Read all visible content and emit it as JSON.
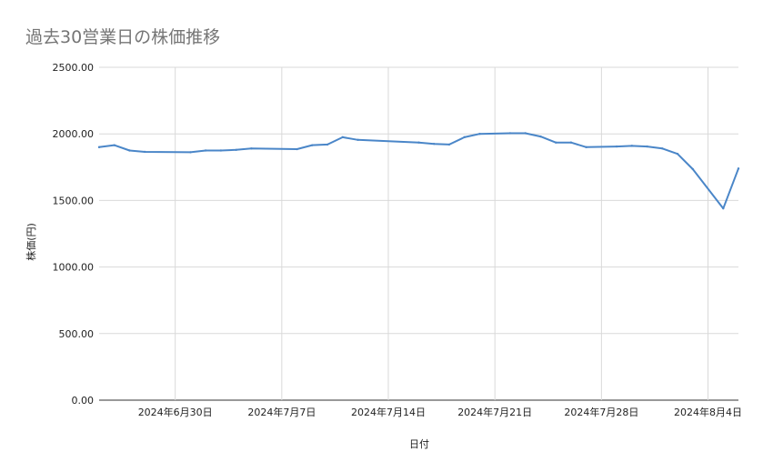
{
  "chart_data": {
    "type": "line",
    "title": "過去30営業日の株価推移",
    "xlabel": "日付",
    "ylabel": "株価(円)",
    "ylim": [
      0,
      2500
    ],
    "y_ticks": [
      "0.00",
      "500.00",
      "1000.00",
      "1500.00",
      "2000.00",
      "2500.00"
    ],
    "x_ticks": [
      {
        "label": "2024年6月30日",
        "date": "2024-06-30"
      },
      {
        "label": "2024年7月7日",
        "date": "2024-07-07"
      },
      {
        "label": "2024年7月14日",
        "date": "2024-07-14"
      },
      {
        "label": "2024年7月21日",
        "date": "2024-07-21"
      },
      {
        "label": "2024年7月28日",
        "date": "2024-07-28"
      },
      {
        "label": "2024年8月4日",
        "date": "2024-08-04"
      }
    ],
    "xlim": [
      "2024-06-25",
      "2024-08-06"
    ],
    "grid": true,
    "series": [
      {
        "color": "#4a86c8",
        "points": [
          {
            "x": "2024-06-25",
            "y": 1900
          },
          {
            "x": "2024-06-26",
            "y": 1915
          },
          {
            "x": "2024-06-27",
            "y": 1875
          },
          {
            "x": "2024-06-28",
            "y": 1865
          },
          {
            "x": "2024-07-01",
            "y": 1862
          },
          {
            "x": "2024-07-02",
            "y": 1875
          },
          {
            "x": "2024-07-03",
            "y": 1875
          },
          {
            "x": "2024-07-04",
            "y": 1880
          },
          {
            "x": "2024-07-05",
            "y": 1890
          },
          {
            "x": "2024-07-08",
            "y": 1885
          },
          {
            "x": "2024-07-09",
            "y": 1915
          },
          {
            "x": "2024-07-10",
            "y": 1920
          },
          {
            "x": "2024-07-11",
            "y": 1975
          },
          {
            "x": "2024-07-12",
            "y": 1955
          },
          {
            "x": "2024-07-16",
            "y": 1935
          },
          {
            "x": "2024-07-17",
            "y": 1925
          },
          {
            "x": "2024-07-18",
            "y": 1920
          },
          {
            "x": "2024-07-19",
            "y": 1975
          },
          {
            "x": "2024-07-20",
            "y": 2000
          },
          {
            "x": "2024-07-22",
            "y": 2005
          },
          {
            "x": "2024-07-23",
            "y": 2005
          },
          {
            "x": "2024-07-24",
            "y": 1980
          },
          {
            "x": "2024-07-25",
            "y": 1935
          },
          {
            "x": "2024-07-26",
            "y": 1935
          },
          {
            "x": "2024-07-27",
            "y": 1900
          },
          {
            "x": "2024-07-29",
            "y": 1905
          },
          {
            "x": "2024-07-30",
            "y": 1910
          },
          {
            "x": "2024-07-31",
            "y": 1905
          },
          {
            "x": "2024-08-01",
            "y": 1890
          },
          {
            "x": "2024-08-02",
            "y": 1850
          },
          {
            "x": "2024-08-03",
            "y": 1735
          },
          {
            "x": "2024-08-05",
            "y": 1440
          },
          {
            "x": "2024-08-06",
            "y": 1740
          }
        ]
      }
    ]
  }
}
